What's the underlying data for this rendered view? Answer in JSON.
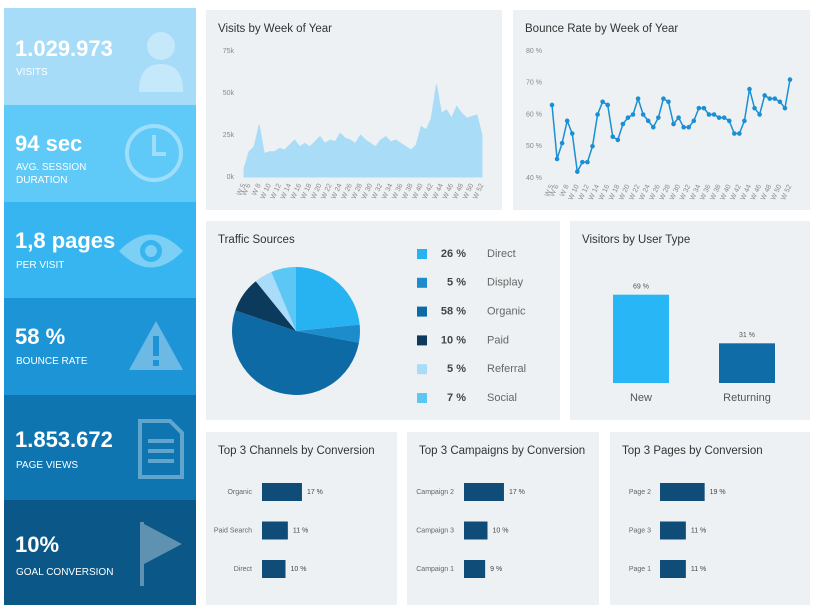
{
  "kpis": [
    {
      "value": "1.029.973",
      "label": "VISITS"
    },
    {
      "value": "94 sec",
      "label": "AVG. SESSION DURATION"
    },
    {
      "value": "1,8 pages",
      "label": "PER VISIT"
    },
    {
      "value": "58 %",
      "label": "BOUNCE RATE"
    },
    {
      "value": "1.853.672",
      "label": "PAGE VIEWS"
    },
    {
      "value": "10%",
      "label": "GOAL CONVERSION"
    }
  ],
  "chart_data": [
    {
      "type": "area",
      "title": "Visits by Week of Year",
      "categories": [
        "W 5",
        "W 6",
        null,
        "W 8",
        null,
        "W 10",
        null,
        "W 12",
        null,
        "W 14",
        null,
        "W 16",
        null,
        "W 18",
        null,
        "W 20",
        null,
        "W 22",
        null,
        "W 24",
        null,
        "W 26",
        null,
        "W 28",
        null,
        "W 30",
        null,
        "W 32",
        null,
        "W 34",
        null,
        "W 36",
        null,
        "W 38",
        null,
        "W 40",
        null,
        "W 42",
        null,
        "W 44",
        null,
        "W 46",
        null,
        "W 48",
        null,
        "W 50",
        null,
        "W 52"
      ],
      "values": [
        5000,
        15000,
        18000,
        31000,
        14000,
        15000,
        15000,
        17000,
        16000,
        19000,
        22000,
        18000,
        20000,
        18000,
        21000,
        24000,
        20000,
        22000,
        21000,
        26000,
        23000,
        22000,
        20000,
        25000,
        22000,
        20000,
        18000,
        22000,
        24000,
        21000,
        22000,
        20000,
        18000,
        16000,
        19000,
        30000,
        28000,
        35000,
        55000,
        38000,
        40000,
        35000,
        42000,
        38000,
        35000,
        36000,
        37000,
        25000
      ],
      "color": "#a9ddf7",
      "ylim": [
        0,
        75000
      ],
      "yticks": [
        {
          "value": 0,
          "label": "0k"
        },
        {
          "value": 25000,
          "label": "25k"
        },
        {
          "value": 50000,
          "label": "50k"
        },
        {
          "value": 75000,
          "label": "75k"
        }
      ]
    },
    {
      "type": "line",
      "title": "Bounce Rate by Week of Year",
      "categories": [
        "W 5",
        "W 6",
        null,
        "W 8",
        null,
        "W 10",
        null,
        "W 12",
        null,
        "W 14",
        null,
        "W 16",
        null,
        "W 18",
        null,
        "W 20",
        null,
        "W 22",
        null,
        "W 24",
        null,
        "W 26",
        null,
        "W 28",
        null,
        "W 30",
        null,
        "W 32",
        null,
        "W 34",
        null,
        "W 36",
        null,
        "W 38",
        null,
        "W 40",
        null,
        "W 42",
        null,
        "W 44",
        null,
        "W 46",
        null,
        "W 48",
        null,
        "W 50",
        null,
        "W 52"
      ],
      "values": [
        63,
        46,
        51,
        58,
        54,
        42,
        45,
        45,
        50,
        60,
        64,
        63,
        53,
        52,
        57,
        59,
        60,
        65,
        60,
        58,
        56,
        59,
        65,
        64,
        57,
        59,
        56,
        56,
        58,
        62,
        62,
        60,
        60,
        59,
        59,
        58,
        54,
        54,
        58,
        68,
        62,
        60,
        66,
        65,
        65,
        64,
        62,
        71
      ],
      "color": "#1b8fd3",
      "ylim": [
        40,
        80
      ],
      "yticks": [
        {
          "value": 40,
          "label": "40 %"
        },
        {
          "value": 50,
          "label": "50 %"
        },
        {
          "value": 60,
          "label": "60 %"
        },
        {
          "value": 70,
          "label": "70 %"
        },
        {
          "value": 80,
          "label": "80 %"
        }
      ]
    },
    {
      "type": "pie",
      "title": "Traffic Sources",
      "categories": [
        "Direct",
        "Display",
        "Organic",
        "Paid",
        "Referral",
        "Social"
      ],
      "values": [
        26,
        5,
        58,
        10,
        5,
        7
      ],
      "value_labels": [
        "26 %",
        "5 %",
        "58 %",
        "10 %",
        "5 %",
        "7 %"
      ],
      "colors": [
        "#27b3f1",
        "#1c8ccc",
        "#0d6aa5",
        "#0b3a5c",
        "#a8dcf8",
        "#5cc6f5"
      ]
    },
    {
      "type": "bar",
      "title": "Visitors by User Type",
      "categories": [
        "New",
        "Returning"
      ],
      "values": [
        69,
        31
      ],
      "value_labels": [
        "69 %",
        "31 %"
      ],
      "colors": [
        "#29b6f6",
        "#0f6ca6"
      ]
    },
    {
      "type": "hbar",
      "title": "Top 3 Channels by Conversion",
      "categories": [
        "Organic",
        "Paid Search",
        "Direct"
      ],
      "values": [
        17,
        11,
        10
      ],
      "value_labels": [
        "17 %",
        "11 %",
        "10 %"
      ],
      "color": "#0f4c78"
    },
    {
      "type": "hbar",
      "title": "Top 3 Campaigns by Conversion",
      "categories": [
        "Campaign 2",
        "Campaign 3",
        "Campaign 1"
      ],
      "values": [
        17,
        10,
        9
      ],
      "value_labels": [
        "17 %",
        "10 %",
        "9 %"
      ],
      "color": "#0f4c78"
    },
    {
      "type": "hbar",
      "title": "Top 3 Pages by Conversion",
      "categories": [
        "Page 2",
        "Page 3",
        "Page 1"
      ],
      "values": [
        19,
        11,
        11
      ],
      "value_labels": [
        "19 %",
        "11 %",
        "11 %"
      ],
      "color": "#0f4c78"
    }
  ]
}
